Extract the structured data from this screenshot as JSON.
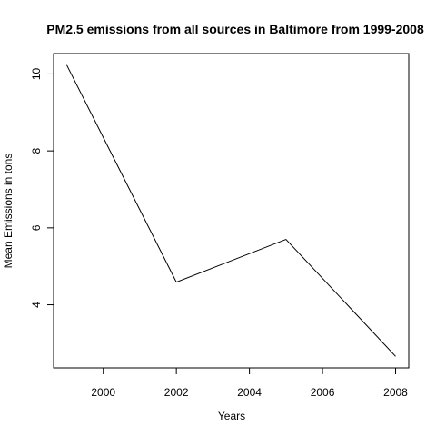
{
  "chart_data": {
    "type": "line",
    "title": "PM2.5 emissions from all sources in Baltimore from 1999-2008",
    "xlabel": "Years",
    "ylabel": "Mean Emissions in tons",
    "x": [
      1999,
      2002,
      2005,
      2008
    ],
    "series": [
      {
        "values": [
          10.23,
          4.59,
          5.7,
          2.66
        ],
        "color": "#000000"
      }
    ],
    "xlim": [
      1998.64,
      2008.36
    ],
    "ylim": [
      2.36,
      10.53
    ],
    "xticks": [
      2000,
      2002,
      2004,
      2006,
      2008
    ],
    "yticks": [
      4,
      6,
      8,
      10
    ],
    "grid": false
  }
}
